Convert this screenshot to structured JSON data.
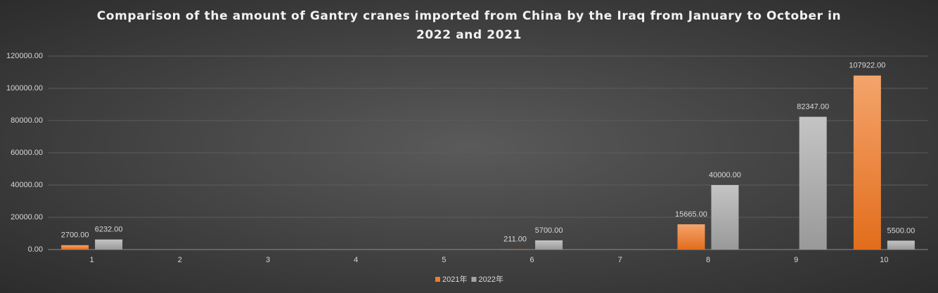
{
  "chart_data": {
    "type": "bar",
    "title": "Comparison of the amount of Gantry cranes imported from China by the Iraq from January to October in 2022 and 2021",
    "categories": [
      "1",
      "2",
      "3",
      "4",
      "5",
      "6",
      "7",
      "8",
      "9",
      "10"
    ],
    "series": [
      {
        "name": "2021年",
        "color": "#ed7d31",
        "values": [
          2700,
          null,
          null,
          null,
          null,
          211,
          null,
          15665,
          null,
          107922
        ],
        "value_labels": [
          "2700.00",
          null,
          null,
          null,
          null,
          "211.00",
          null,
          "15665.00",
          null,
          "107922.00"
        ]
      },
      {
        "name": "2022年",
        "color": "#a5a5a5",
        "values": [
          6232,
          null,
          null,
          null,
          null,
          5700,
          null,
          40000,
          82347,
          5500
        ],
        "value_labels": [
          "6232.00",
          null,
          null,
          null,
          null,
          "5700.00",
          null,
          "40000.00",
          "82347.00",
          "5500.00"
        ]
      }
    ],
    "ylim": [
      0,
      120000
    ],
    "yticks": [
      {
        "value": 0,
        "label": "0.00"
      },
      {
        "value": 20000,
        "label": "20000.00"
      },
      {
        "value": 40000,
        "label": "40000.00"
      },
      {
        "value": 60000,
        "label": "60000.00"
      },
      {
        "value": 80000,
        "label": "80000.00"
      },
      {
        "value": 100000,
        "label": "100000.00"
      },
      {
        "value": 120000,
        "label": "120000.00"
      }
    ],
    "grid": true,
    "legend": "bottom"
  }
}
